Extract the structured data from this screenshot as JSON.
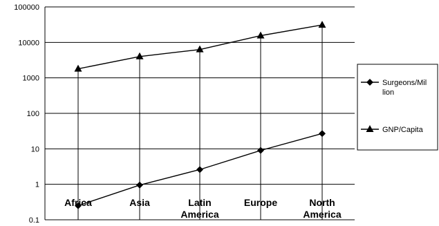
{
  "chart_data": {
    "type": "line",
    "y_scale": "log",
    "ylim": [
      0.1,
      100000
    ],
    "y_ticks": [
      "100000",
      "10000",
      "1000",
      "100",
      "10",
      "1",
      "0.1"
    ],
    "grid": "horizontal",
    "drop_lines": true,
    "categories": [
      [
        "Africa"
      ],
      [
        "Asia"
      ],
      [
        "Latin",
        "America"
      ],
      [
        "Europe"
      ],
      [
        "North",
        "America"
      ]
    ],
    "series": [
      {
        "name": [
          "Surgeons/Mil",
          "lion"
        ],
        "marker": "diamond",
        "values": [
          0.25,
          0.95,
          2.6,
          9,
          27
        ]
      },
      {
        "name": [
          "GNP/Capita"
        ],
        "marker": "triangle",
        "values": [
          1800,
          4000,
          6300,
          15500,
          31000
        ]
      }
    ],
    "legend_position": "right",
    "colors": {
      "line": "#000000",
      "grid": "#000000",
      "background": "#ffffff"
    }
  }
}
